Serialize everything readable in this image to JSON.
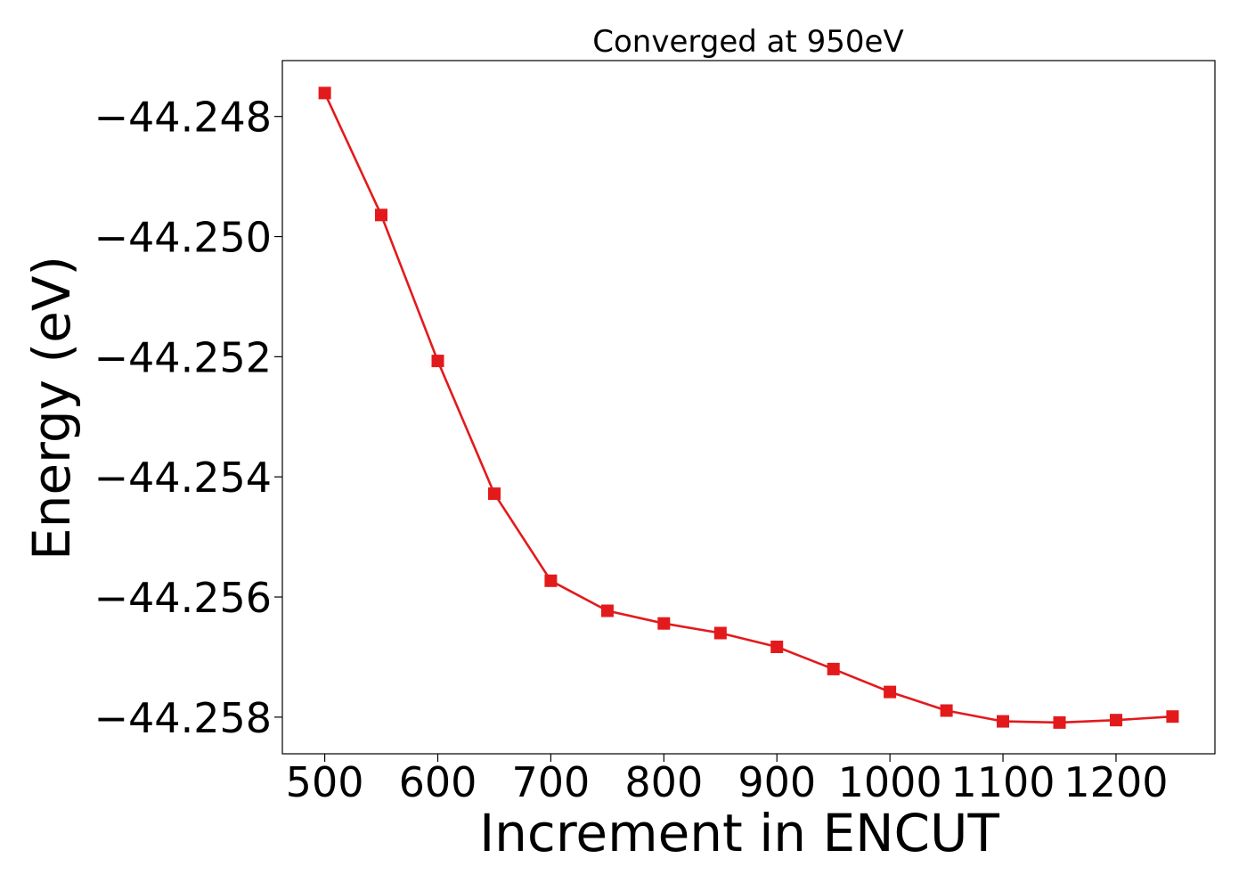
{
  "chart_data": {
    "type": "line",
    "title": "Converged at 950eV",
    "xlabel": "Increment in ENCUT",
    "ylabel": "Energy (eV)",
    "x": [
      500,
      550,
      600,
      650,
      700,
      750,
      800,
      850,
      900,
      950,
      1000,
      1050,
      1100,
      1150,
      1200,
      1250
    ],
    "series": [
      {
        "values": [
          -44.24761,
          -44.24964,
          -44.25207,
          -44.25428,
          -44.25573,
          -44.25623,
          -44.25644,
          -44.2566,
          -44.25683,
          -44.2572,
          -44.25758,
          -44.25789,
          -44.25807,
          -44.25809,
          -44.25805,
          -44.25799
        ],
        "color": "#e31a1c",
        "marker": "square"
      }
    ],
    "xticks": [
      "500",
      "600",
      "700",
      "800",
      "900",
      "1000",
      "1100",
      "1200"
    ],
    "xtick_values": [
      500,
      600,
      700,
      800,
      900,
      1000,
      1100,
      1200
    ],
    "yticks": [
      "−44.248",
      "−44.250",
      "−44.252",
      "−44.254",
      "−44.256",
      "−44.258"
    ],
    "ytick_values": [
      -44.248,
      -44.25,
      -44.252,
      -44.254,
      -44.256,
      -44.258
    ],
    "xlim": [
      462.5,
      1287.5
    ],
    "ylim": [
      -44.25861,
      -44.24707
    ],
    "grid": false,
    "legend": "none"
  }
}
